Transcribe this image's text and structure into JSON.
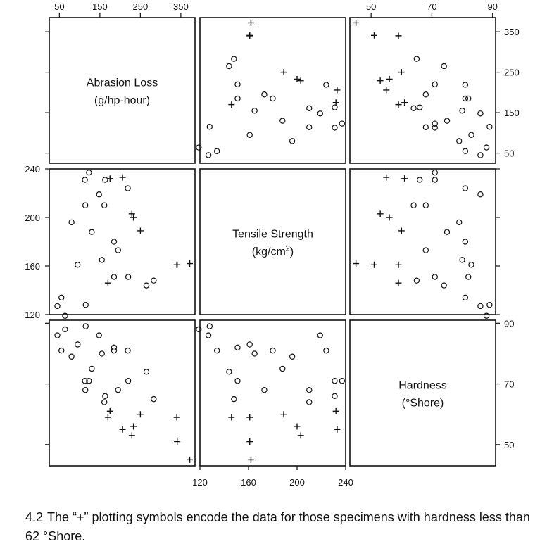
{
  "chart_data": {
    "type": "scatter-matrix",
    "variables": [
      {
        "key": "abrasion",
        "label_lines": [
          "Abrasion Loss",
          "(g/hp-hour)"
        ],
        "range": [
          25,
          385
        ],
        "ticks": [
          50,
          150,
          250,
          350
        ],
        "tick_labels": [
          "50",
          "150",
          "250",
          "350"
        ]
      },
      {
        "key": "tensile",
        "label_lines": [
          "Tensile Strength",
          "(kg/cm",
          "2",
          ")"
        ],
        "range": [
          120,
          240
        ],
        "ticks": [
          120,
          160,
          200,
          240
        ],
        "tick_labels": [
          "120",
          "160",
          "200",
          "240"
        ]
      },
      {
        "key": "hardness",
        "label_lines": [
          "Hardness",
          "(°Shore)"
        ],
        "range": [
          43,
          91
        ],
        "ticks": [
          50,
          70,
          90
        ],
        "tick_labels": [
          "50",
          "70",
          "90"
        ]
      }
    ],
    "hardness_threshold": 62,
    "symbols": {
      "below_threshold": "+",
      "at_or_above": "o"
    },
    "points": [
      {
        "hardness": 45,
        "tensile": 162,
        "abrasion": 372
      },
      {
        "hardness": 55,
        "tensile": 233,
        "abrasion": 206
      },
      {
        "hardness": 61,
        "tensile": 232,
        "abrasion": 175
      },
      {
        "hardness": 66,
        "tensile": 231,
        "abrasion": 163
      },
      {
        "hardness": 71,
        "tensile": 231,
        "abrasion": 113
      },
      {
        "hardness": 71,
        "tensile": 237,
        "abrasion": 123
      },
      {
        "hardness": 81,
        "tensile": 224,
        "abrasion": 219
      },
      {
        "hardness": 86,
        "tensile": 219,
        "abrasion": 148
      },
      {
        "hardness": 53,
        "tensile": 203,
        "abrasion": 229
      },
      {
        "hardness": 60,
        "tensile": 189,
        "abrasion": 250
      },
      {
        "hardness": 64,
        "tensile": 210,
        "abrasion": 161
      },
      {
        "hardness": 68,
        "tensile": 210,
        "abrasion": 114
      },
      {
        "hardness": 79,
        "tensile": 196,
        "abrasion": 80
      },
      {
        "hardness": 81,
        "tensile": 180,
        "abrasion": 185
      },
      {
        "hardness": 56,
        "tensile": 200,
        "abrasion": 233
      },
      {
        "hardness": 68,
        "tensile": 173,
        "abrasion": 195
      },
      {
        "hardness": 75,
        "tensile": 188,
        "abrasion": 130
      },
      {
        "hardness": 83,
        "tensile": 161,
        "abrasion": 95
      },
      {
        "hardness": 88,
        "tensile": 119,
        "abrasion": 64
      },
      {
        "hardness": 59,
        "tensile": 161,
        "abrasion": 340
      },
      {
        "hardness": 71,
        "tensile": 151,
        "abrasion": 220
      },
      {
        "hardness": 80,
        "tensile": 165,
        "abrasion": 155
      },
      {
        "hardness": 82,
        "tensile": 151,
        "abrasion": 185
      },
      {
        "hardness": 89,
        "tensile": 128,
        "abrasion": 115
      },
      {
        "hardness": 51,
        "tensile": 161,
        "abrasion": 341
      },
      {
        "hardness": 59,
        "tensile": 146,
        "abrasion": 170
      },
      {
        "hardness": 65,
        "tensile": 148,
        "abrasion": 283
      },
      {
        "hardness": 74,
        "tensile": 144,
        "abrasion": 265
      },
      {
        "hardness": 81,
        "tensile": 134,
        "abrasion": 55
      },
      {
        "hardness": 86,
        "tensile": 127,
        "abrasion": 45
      }
    ]
  },
  "caption": {
    "number": "4.2",
    "text": "The “+” plotting symbols encode the data for those specimens with hardness less than 62 °Shore."
  }
}
